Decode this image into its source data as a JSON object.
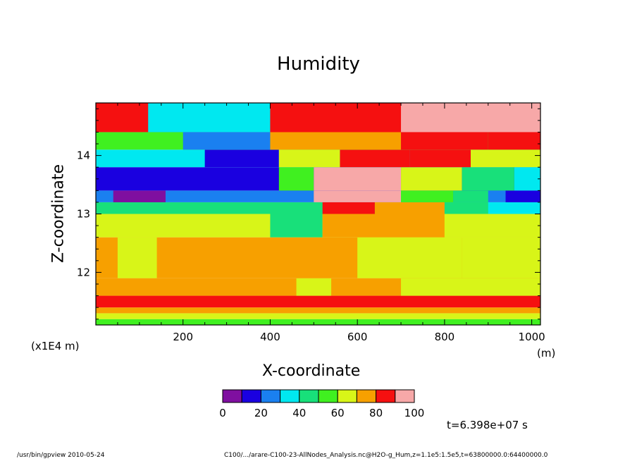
{
  "chart_data": {
    "type": "heatmap",
    "title": "Humidity",
    "xlabel": "X-coordinate",
    "ylabel": "Z-coordinate",
    "x_unit": "(m)",
    "y_unit": "(x1E4 m)",
    "xlim": [
      0,
      1020
    ],
    "ylim": [
      11.1,
      14.9
    ],
    "x_ticks": [
      "200",
      "400",
      "600",
      "800",
      "1000"
    ],
    "y_ticks": [
      "12",
      "13",
      "14"
    ],
    "colorbar": {
      "levels": [
        0,
        10,
        20,
        30,
        40,
        50,
        60,
        70,
        80,
        90,
        100
      ],
      "tick_labels": [
        "0",
        "20",
        "40",
        "60",
        "80",
        "100"
      ],
      "colors": [
        "#7f0fa0",
        "#1a00e0",
        "#1a80f0",
        "#00e8f0",
        "#18e07a",
        "#40f020",
        "#d8f518",
        "#f7a000",
        "#f51010",
        "#f7a8a8"
      ]
    },
    "rows": [
      {
        "z": [
          11.1,
          11.2
        ],
        "values": [
          {
            "x": [
              0,
              1020
            ],
            "v": 5
          }
        ]
      },
      {
        "z": [
          11.2,
          11.3
        ],
        "values": [
          {
            "x": [
              0,
              1020
            ],
            "v": 6
          }
        ]
      },
      {
        "z": [
          11.3,
          11.4
        ],
        "values": [
          {
            "x": [
              0,
              1020
            ],
            "v": 7
          }
        ]
      },
      {
        "z": [
          11.4,
          11.6
        ],
        "values": [
          {
            "x": [
              0,
              1020
            ],
            "v": 8
          }
        ]
      },
      {
        "z": [
          11.6,
          11.9
        ],
        "values": [
          {
            "x": [
              0,
              1020
            ],
            "v": 7
          },
          {
            "x": [
              460,
              540
            ],
            "v": 6
          },
          {
            "x": [
              700,
              1020
            ],
            "v": 6
          }
        ]
      },
      {
        "z": [
          11.9,
          12.6
        ],
        "values": [
          {
            "x": [
              0,
              1020
            ],
            "v": 7
          },
          {
            "x": [
              50,
              140
            ],
            "v": 6
          },
          {
            "x": [
              600,
              840
            ],
            "v": 6
          },
          {
            "x": [
              840,
              1020
            ],
            "v": 6
          }
        ]
      },
      {
        "z": [
          12.6,
          13.0
        ],
        "values": [
          {
            "x": [
              0,
              1020
            ],
            "v": 6
          },
          {
            "x": [
              400,
              520
            ],
            "v": 4
          },
          {
            "x": [
              520,
              800
            ],
            "v": 7
          },
          {
            "x": [
              800,
              1020
            ],
            "v": 6
          }
        ]
      },
      {
        "z": [
          13.0,
          13.2
        ],
        "values": [
          {
            "x": [
              0,
              1020
            ],
            "v": 4
          },
          {
            "x": [
              520,
              640
            ],
            "v": 8
          },
          {
            "x": [
              640,
              800
            ],
            "v": 7
          },
          {
            "x": [
              900,
              1020
            ],
            "v": 3
          }
        ]
      },
      {
        "z": [
          13.2,
          13.4
        ],
        "values": [
          {
            "x": [
              0,
              1020
            ],
            "v": 2
          },
          {
            "x": [
              40,
              160
            ],
            "v": 0
          },
          {
            "x": [
              500,
              700
            ],
            "v": 9
          },
          {
            "x": [
              700,
              820
            ],
            "v": 5
          },
          {
            "x": [
              820,
              900
            ],
            "v": 4
          },
          {
            "x": [
              940,
              1020
            ],
            "v": 1
          }
        ]
      },
      {
        "z": [
          13.4,
          13.8
        ],
        "values": [
          {
            "x": [
              0,
              1020
            ],
            "v": 1
          },
          {
            "x": [
              420,
              500
            ],
            "v": 5
          },
          {
            "x": [
              500,
              700
            ],
            "v": 9
          },
          {
            "x": [
              700,
              840
            ],
            "v": 6
          },
          {
            "x": [
              840,
              960
            ],
            "v": 4
          },
          {
            "x": [
              960,
              1020
            ],
            "v": 3
          }
        ]
      },
      {
        "z": [
          13.8,
          14.1
        ],
        "values": [
          {
            "x": [
              0,
              1020
            ],
            "v": 3
          },
          {
            "x": [
              250,
              420
            ],
            "v": 1
          },
          {
            "x": [
              420,
              560
            ],
            "v": 6
          },
          {
            "x": [
              560,
              720
            ],
            "v": 8
          },
          {
            "x": [
              720,
              860
            ],
            "v": 8
          },
          {
            "x": [
              860,
              1020
            ],
            "v": 6
          }
        ]
      },
      {
        "z": [
          14.1,
          14.4
        ],
        "values": [
          {
            "x": [
              0,
              1020
            ],
            "v": 5
          },
          {
            "x": [
              200,
              400
            ],
            "v": 2
          },
          {
            "x": [
              400,
              700
            ],
            "v": 7
          },
          {
            "x": [
              700,
              900
            ],
            "v": 8
          },
          {
            "x": [
              900,
              1020
            ],
            "v": 8
          }
        ]
      },
      {
        "z": [
          14.4,
          14.9
        ],
        "values": [
          {
            "x": [
              0,
              1020
            ],
            "v": 8
          },
          {
            "x": [
              120,
              400
            ],
            "v": 3
          },
          {
            "x": [
              400,
              700
            ],
            "v": 8
          },
          {
            "x": [
              700,
              1020
            ],
            "v": 9
          }
        ]
      }
    ],
    "annotation_time": "t=6.398e+07 s"
  },
  "footer": {
    "left": "/usr/bin/gpview   2010-05-24",
    "right": "C100/.../arare-C100-23-AllNodes_Analysis.nc@H2O-g_Hum,z=1.1e5:1.5e5,t=63800000.0:64400000.0"
  }
}
